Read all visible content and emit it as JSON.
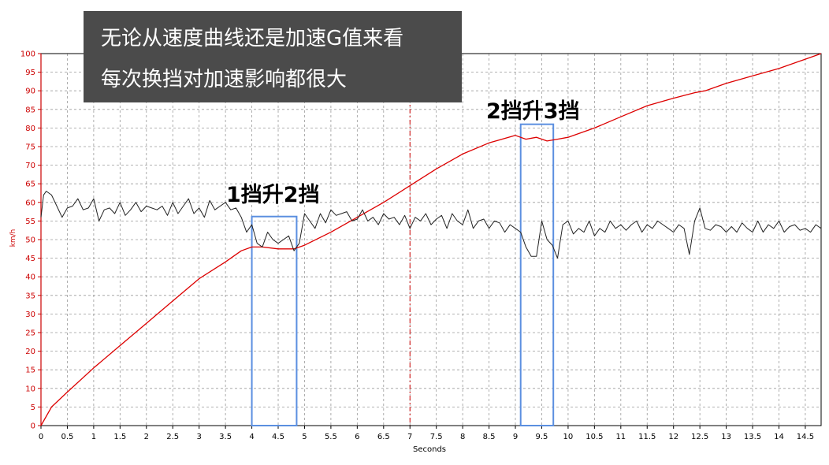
{
  "title_overlay": {
    "line1": "无论从速度曲线还是加速G值来看",
    "line2": "每次换挡对加速影响都很大"
  },
  "annotations": [
    {
      "label": "1挡升2挡",
      "x_range": [
        4.0,
        4.85
      ]
    },
    {
      "label": "2挡升3挡",
      "x_range": [
        9.1,
        9.72
      ]
    }
  ],
  "chart_data": {
    "type": "line",
    "xlabel": "Seconds",
    "ylabel": "km/h",
    "xlim": [
      0,
      14.8
    ],
    "ylim": [
      0,
      100
    ],
    "x_ticks": [
      "0",
      "0.5",
      "1",
      "1.5",
      "2",
      "2.5",
      "3",
      "3.5",
      "4",
      "4.5",
      "5",
      "5.5",
      "6",
      "6.5",
      "7",
      "7.5",
      "8",
      "8.5",
      "9",
      "9.5",
      "10",
      "10.5",
      "11",
      "11.5",
      "12",
      "12.5",
      "13",
      "13.5",
      "14",
      "14.5"
    ],
    "y_ticks": [
      "0",
      "5",
      "10",
      "15",
      "20",
      "25",
      "30",
      "35",
      "40",
      "45",
      "50",
      "55",
      "60",
      "65",
      "70",
      "75",
      "80",
      "85",
      "90",
      "95",
      "100"
    ],
    "grid": true,
    "marker_line_x": 7.0,
    "colors": {
      "speed": "#dd0000",
      "accel": "#222222",
      "highlight": "#5b8fe0",
      "axis_label": "#cc0000"
    },
    "series": [
      {
        "key": "speed",
        "x": [
          0,
          0.2,
          0.5,
          1,
          1.5,
          2,
          2.5,
          3,
          3.5,
          3.8,
          4.0,
          4.2,
          4.5,
          4.8,
          5.0,
          5.5,
          6,
          6.5,
          7,
          7.5,
          8,
          8.5,
          9.0,
          9.2,
          9.4,
          9.6,
          9.8,
          10,
          10.5,
          11,
          11.5,
          12,
          12.4,
          12.6,
          13,
          13.5,
          14,
          14.5,
          14.8
        ],
        "values": [
          0,
          5,
          9,
          15.5,
          21.5,
          27.5,
          33.5,
          39.5,
          44,
          47,
          48,
          48,
          47.5,
          47.5,
          48.5,
          52,
          56,
          60,
          64.5,
          69,
          73,
          76,
          78,
          77,
          77.5,
          76.5,
          77,
          77.5,
          80,
          83,
          86,
          88,
          89.5,
          90,
          92,
          94,
          96,
          98.5,
          100
        ]
      },
      {
        "key": "accel",
        "x": [
          0,
          0.05,
          0.1,
          0.2,
          0.3,
          0.4,
          0.5,
          0.6,
          0.7,
          0.8,
          0.9,
          1.0,
          1.1,
          1.2,
          1.3,
          1.4,
          1.5,
          1.6,
          1.7,
          1.8,
          1.9,
          2.0,
          2.1,
          2.2,
          2.3,
          2.4,
          2.5,
          2.6,
          2.7,
          2.8,
          2.9,
          3.0,
          3.1,
          3.2,
          3.3,
          3.4,
          3.5,
          3.6,
          3.7,
          3.8,
          3.9,
          4.0,
          4.1,
          4.2,
          4.3,
          4.4,
          4.5,
          4.6,
          4.7,
          4.8,
          4.9,
          5.0,
          5.1,
          5.2,
          5.3,
          5.4,
          5.5,
          5.6,
          5.7,
          5.8,
          5.9,
          6.0,
          6.1,
          6.2,
          6.3,
          6.4,
          6.5,
          6.6,
          6.7,
          6.8,
          6.9,
          7.0,
          7.1,
          7.2,
          7.3,
          7.4,
          7.5,
          7.6,
          7.7,
          7.8,
          7.9,
          8.0,
          8.1,
          8.2,
          8.3,
          8.4,
          8.5,
          8.6,
          8.7,
          8.8,
          8.9,
          9.0,
          9.1,
          9.2,
          9.3,
          9.4,
          9.5,
          9.6,
          9.7,
          9.8,
          9.9,
          10.0,
          10.1,
          10.2,
          10.3,
          10.4,
          10.5,
          10.6,
          10.7,
          10.8,
          10.9,
          11.0,
          11.1,
          11.2,
          11.3,
          11.4,
          11.5,
          11.6,
          11.7,
          11.8,
          11.9,
          12.0,
          12.1,
          12.2,
          12.3,
          12.4,
          12.5,
          12.6,
          12.7,
          12.8,
          12.9,
          13.0,
          13.1,
          13.2,
          13.3,
          13.4,
          13.5,
          13.6,
          13.7,
          13.8,
          13.9,
          14.0,
          14.1,
          14.2,
          14.3,
          14.4,
          14.5,
          14.6,
          14.7,
          14.8
        ],
        "values": [
          56,
          62,
          63,
          62,
          59,
          56,
          58.5,
          59,
          61,
          58,
          58.5,
          61,
          55,
          58,
          58.5,
          57,
          60,
          56.5,
          58,
          60,
          57.5,
          59,
          58.5,
          58,
          59,
          56.5,
          60,
          57,
          59,
          61,
          57,
          58.5,
          56,
          60.5,
          58,
          59,
          60,
          58,
          58.5,
          56,
          52,
          54,
          49,
          48,
          52,
          50,
          49,
          50,
          51,
          47,
          49,
          57,
          55,
          53,
          57,
          54.5,
          58,
          56.5,
          57,
          57.5,
          55,
          55.5,
          58,
          55,
          56,
          54,
          57,
          55.5,
          56,
          54,
          56.5,
          53,
          56,
          55,
          57,
          54,
          55.5,
          56.5,
          53,
          57,
          55,
          54,
          58,
          53,
          55,
          55.5,
          53,
          55,
          54.5,
          52,
          54,
          53,
          52,
          48,
          45.5,
          45.5,
          55,
          50,
          48.5,
          45,
          54,
          55,
          51.5,
          53,
          52,
          55,
          51,
          53,
          52,
          55,
          53,
          54,
          52.5,
          54,
          55,
          52,
          54,
          53,
          55,
          54,
          53,
          52,
          54,
          53,
          46,
          55,
          58.5,
          53,
          52.5,
          54,
          53.5,
          52,
          53.5,
          52,
          54.5,
          53,
          52,
          55,
          52,
          54,
          53,
          55,
          52,
          53.5,
          54,
          52.5,
          53,
          52,
          54,
          53
        ]
      }
    ]
  }
}
